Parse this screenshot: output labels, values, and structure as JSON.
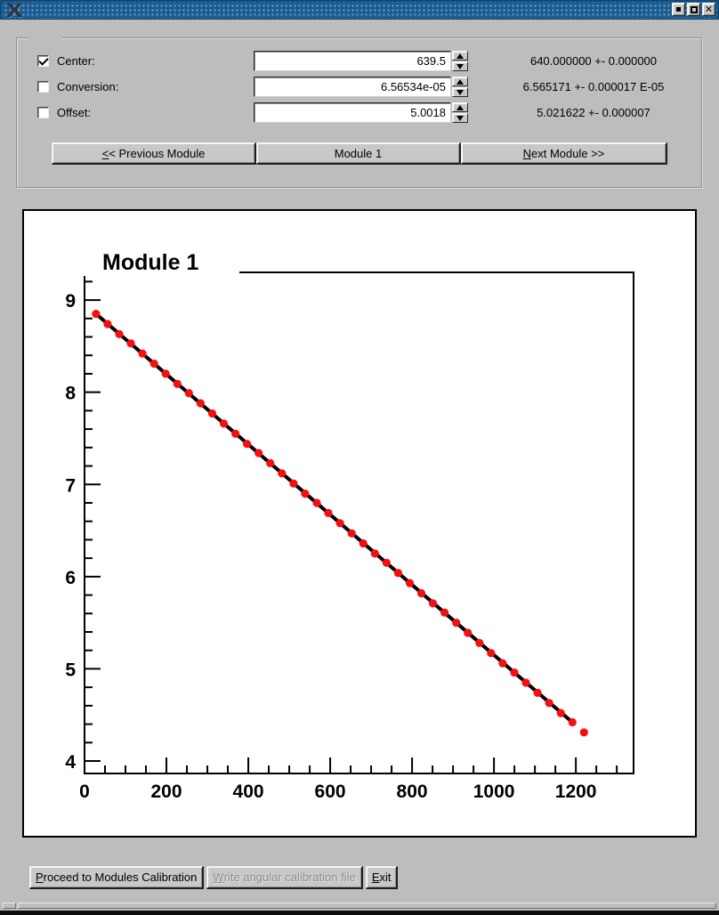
{
  "window": {
    "titlebar": {
      "logo_icon": "x11-logo",
      "logo_glyph": "X",
      "close_glyph": "✕",
      "color": "#1b5b8f"
    }
  },
  "calibration": {
    "rows": [
      {
        "label": "Center:",
        "checked": true,
        "value": "639.5",
        "result": "640.000000 +- 0.000000"
      },
      {
        "label": "Conversion:",
        "checked": false,
        "value": "6.56534e-05",
        "result": "6.565171 +- 0.000017 E-05"
      },
      {
        "label": "Offset:",
        "checked": false,
        "value": "5.0018",
        "result": "5.021622 +- 0.000007"
      }
    ],
    "module_nav": {
      "previous_label": "&<< Previous Module",
      "current_label": "Module 1",
      "next_label": "&Next Module >>"
    }
  },
  "chart_data": {
    "type": "scatter",
    "title": "Module 1",
    "xlabel": "",
    "ylabel": "",
    "xlim": [
      0,
      1341
    ],
    "ylim": [
      3.865,
      9.3
    ],
    "x_major_ticks": [
      0,
      200,
      400,
      600,
      800,
      1000,
      1200
    ],
    "x_minor_step": 50,
    "y_major_ticks": [
      4,
      5,
      6,
      7,
      8,
      9
    ],
    "y_minor_step": 0.2,
    "grid": false,
    "legend": "none",
    "marker_color": "#f50f10",
    "fit_line_color": "#000000",
    "fit_line": {
      "x1": 28,
      "y1": 8.85,
      "x2": 1191.6,
      "y2": 4.42
    },
    "points": [
      [
        28,
        8.85
      ],
      [
        56.4,
        8.74
      ],
      [
        84.8,
        8.63
      ],
      [
        113.1,
        8.53
      ],
      [
        141.5,
        8.42
      ],
      [
        169.9,
        8.31
      ],
      [
        198.3,
        8.2
      ],
      [
        226.7,
        8.09
      ],
      [
        255,
        7.99
      ],
      [
        283.4,
        7.88
      ],
      [
        311.8,
        7.77
      ],
      [
        340.2,
        7.66
      ],
      [
        368.6,
        7.55
      ],
      [
        396.9,
        7.44
      ],
      [
        425.3,
        7.34
      ],
      [
        453.7,
        7.23
      ],
      [
        482.1,
        7.12
      ],
      [
        510.5,
        7.01
      ],
      [
        538.8,
        6.9
      ],
      [
        567.2,
        6.8
      ],
      [
        595.6,
        6.69
      ],
      [
        624,
        6.58
      ],
      [
        652.4,
        6.47
      ],
      [
        680.7,
        6.36
      ],
      [
        709.1,
        6.25
      ],
      [
        737.5,
        6.15
      ],
      [
        765.9,
        6.04
      ],
      [
        794.3,
        5.93
      ],
      [
        822.6,
        5.82
      ],
      [
        851,
        5.71
      ],
      [
        879.4,
        5.61
      ],
      [
        907.8,
        5.5
      ],
      [
        936.2,
        5.39
      ],
      [
        964.5,
        5.28
      ],
      [
        992.9,
        5.17
      ],
      [
        1021.3,
        5.06
      ],
      [
        1049.7,
        4.96
      ],
      [
        1078.1,
        4.85
      ],
      [
        1106.4,
        4.74
      ],
      [
        1134.8,
        4.63
      ],
      [
        1163.2,
        4.52
      ],
      [
        1191.6,
        4.42
      ],
      [
        1220,
        4.31
      ]
    ]
  },
  "footer": {
    "buttons": [
      {
        "label": "&Proceed to Modules Calibration",
        "enabled": true
      },
      {
        "label": "&Write angular calibration file",
        "enabled": false
      },
      {
        "label": "&Exit",
        "enabled": true
      }
    ]
  }
}
